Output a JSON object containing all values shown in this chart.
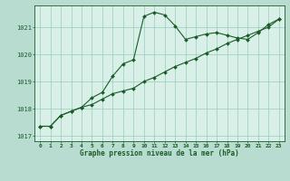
{
  "title": "Graphe pression niveau de la mer (hPa)",
  "background_color": "#b8ddd0",
  "plot_bg_color": "#d8f0e8",
  "grid_color": "#99ccbb",
  "line_color": "#1a5c28",
  "xlim": [
    -0.5,
    23.5
  ],
  "ylim": [
    1016.8,
    1021.8
  ],
  "yticks": [
    1017,
    1018,
    1019,
    1020,
    1021
  ],
  "xticks": [
    0,
    1,
    2,
    3,
    4,
    5,
    6,
    7,
    8,
    9,
    10,
    11,
    12,
    13,
    14,
    15,
    16,
    17,
    18,
    19,
    20,
    21,
    22,
    23
  ],
  "line1_x": [
    0,
    1,
    2,
    3,
    4,
    5,
    6,
    7,
    8,
    9,
    10,
    11,
    12,
    13,
    14,
    15,
    16,
    17,
    18,
    19,
    20,
    21,
    22,
    23
  ],
  "line1_y": [
    1017.35,
    1017.35,
    1017.75,
    1017.9,
    1018.05,
    1018.15,
    1018.35,
    1018.55,
    1018.65,
    1018.75,
    1019.0,
    1019.15,
    1019.35,
    1019.55,
    1019.7,
    1019.85,
    1020.05,
    1020.2,
    1020.4,
    1020.55,
    1020.7,
    1020.85,
    1021.0,
    1021.3
  ],
  "line2_x": [
    0,
    1,
    2,
    3,
    4,
    5,
    6,
    7,
    8,
    9,
    10,
    11,
    12,
    13,
    14,
    15,
    16,
    17,
    18,
    19,
    20,
    21,
    22,
    23
  ],
  "line2_y": [
    1017.35,
    1017.35,
    1017.75,
    1017.9,
    1018.05,
    1018.4,
    1018.6,
    1019.2,
    1019.65,
    1019.8,
    1021.4,
    1021.55,
    1021.45,
    1021.05,
    1020.55,
    1020.65,
    1020.75,
    1020.8,
    1020.7,
    1020.6,
    1020.55,
    1020.8,
    1021.1,
    1021.3
  ]
}
